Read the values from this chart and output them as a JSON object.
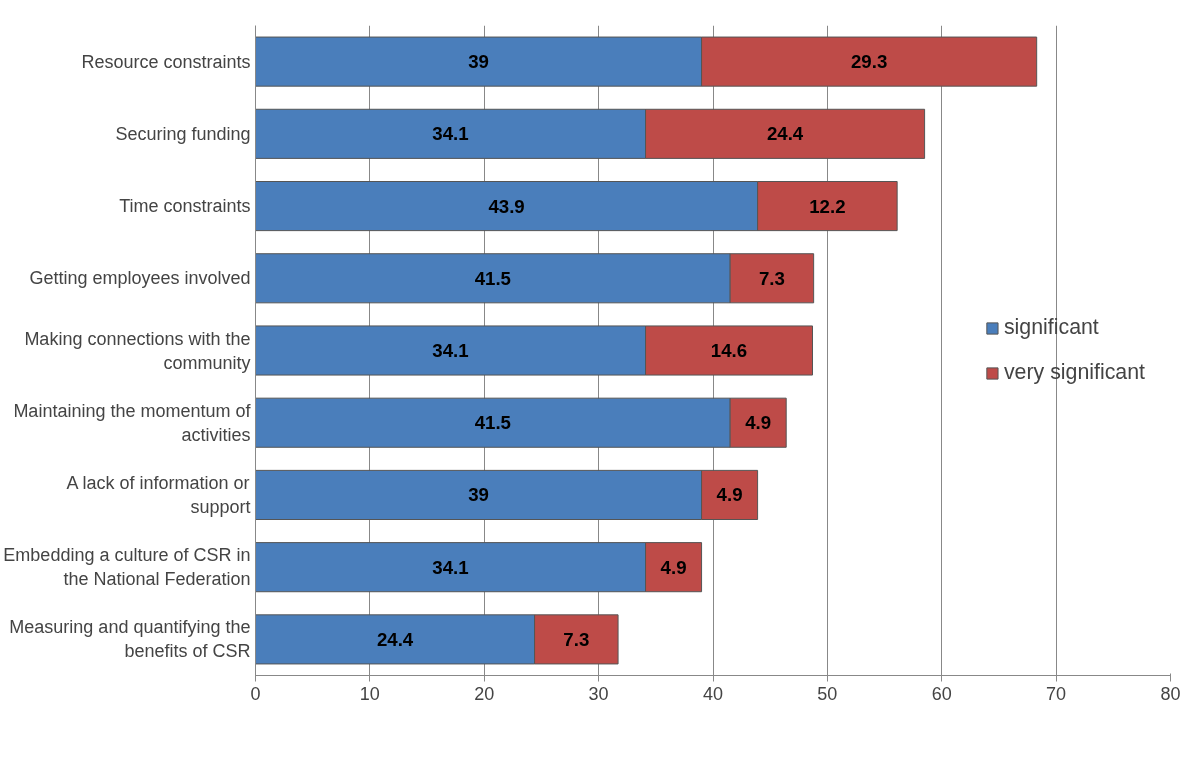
{
  "chart_data": {
    "type": "bar",
    "orientation": "horizontal",
    "stacked": true,
    "categories": [
      "Resource constraints",
      "Securing funding",
      "Time constraints",
      "Getting employees involved",
      "Making connections with the community",
      "Maintaining the momentum of activities",
      "A lack of information or support",
      "Embedding a culture of CSR in the National Federation",
      "Measuring and quantifying the benefits of CSR"
    ],
    "series": [
      {
        "name": "significant",
        "color": "#4a7ebb",
        "values": [
          39,
          34.1,
          43.9,
          41.5,
          34.1,
          41.5,
          39,
          34.1,
          24.4
        ]
      },
      {
        "name": "very significant",
        "color": "#be4b48",
        "values": [
          29.3,
          24.4,
          12.2,
          7.3,
          14.6,
          4.9,
          4.9,
          4.9,
          7.3
        ]
      }
    ],
    "xlim": [
      0,
      80
    ],
    "xticks": [
      0,
      10,
      20,
      30,
      40,
      50,
      60,
      70,
      80
    ],
    "grid": "x",
    "legend": "right",
    "data_labels": true
  }
}
